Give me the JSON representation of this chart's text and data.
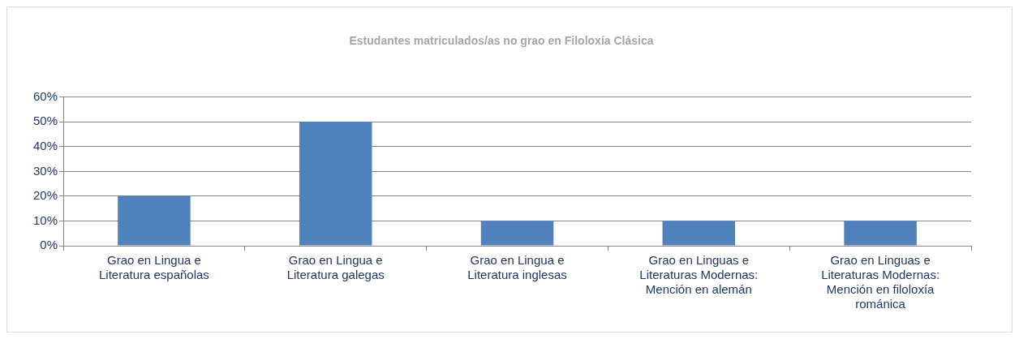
{
  "chart_data": {
    "type": "bar",
    "title": "Estudantes matriculados/as no grao en Filoloxía Clásica",
    "categories": [
      "Grao en Lingua e Literatura españolas",
      "Grao en Lingua e Literatura galegas",
      "Grao en Lingua e Literatura inglesas",
      "Grao en Linguas e Literaturas Modernas: Mención en alemán",
      "Grao en Linguas e Literaturas Modernas: Mención en filoloxía románica"
    ],
    "values": [
      20,
      50,
      10,
      10,
      10
    ],
    "color": "#4f81bd",
    "ylim": [
      0,
      60
    ],
    "yticks": [
      {
        "value": 0,
        "label": "0%"
      },
      {
        "value": 10,
        "label": "10%"
      },
      {
        "value": 20,
        "label": "20%"
      },
      {
        "value": 30,
        "label": "30%"
      },
      {
        "value": 40,
        "label": "40%"
      },
      {
        "value": 50,
        "label": "50%"
      },
      {
        "value": 60,
        "label": "60%"
      }
    ],
    "grid": "y",
    "legend": false
  }
}
